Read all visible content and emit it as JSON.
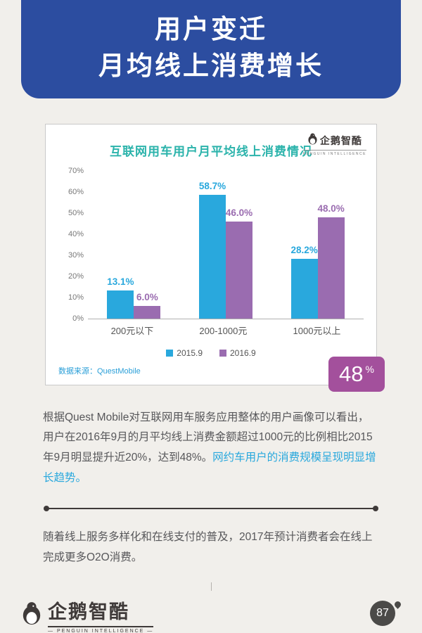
{
  "header": {
    "title_line1": "用户变迁",
    "title_line2": "月均线上消费增长",
    "bg_color": "#2c4da0"
  },
  "chart_card": {
    "logo_text": "企鹅智酷",
    "logo_subtitle": "PENGUIN INTELLIGENCE",
    "source": "数据来源：QuestMobile",
    "badge_value": "48",
    "badge_unit": "%",
    "badge_color": "#a3509c"
  },
  "chart_data": {
    "type": "bar",
    "title": "互联网用车用户月平均线上消费情况",
    "categories": [
      "200元以下",
      "200-1000元",
      "1000元以上"
    ],
    "series": [
      {
        "name": "2015.9",
        "color": "#29a8dd",
        "values": [
          13.1,
          58.7,
          28.2
        ]
      },
      {
        "name": "2016.9",
        "color": "#9a6cb0",
        "values": [
          6.0,
          46.0,
          48.0
        ]
      }
    ],
    "ylim": [
      0,
      70
    ],
    "ytick_step": 10,
    "ytick_suffix": "%",
    "grid": false,
    "legend_position": "bottom",
    "data_labels": [
      "13.1%",
      "6.0%",
      "58.7%",
      "46.0%",
      "28.2%",
      "48.0%"
    ]
  },
  "body": {
    "p1_plain": "根据Quest Mobile对互联网用车服务应用整体的用户画像可以看出，用户在2016年9月的月平均线上消费金额超过1000元的比例相比2015年9月明显提升近20%，达到48%。",
    "p1_highlight": "网约车用户的消费规模呈现明显增长趋势。",
    "p2": "随着线上服务多样化和在线支付的普及，2017年预计消费者会在线上完成更多O2O消费。"
  },
  "footer": {
    "logo_text": "企鹅智酷",
    "logo_subtitle": "— PENGUIN INTELLIGENCE —",
    "page_number": "87"
  }
}
